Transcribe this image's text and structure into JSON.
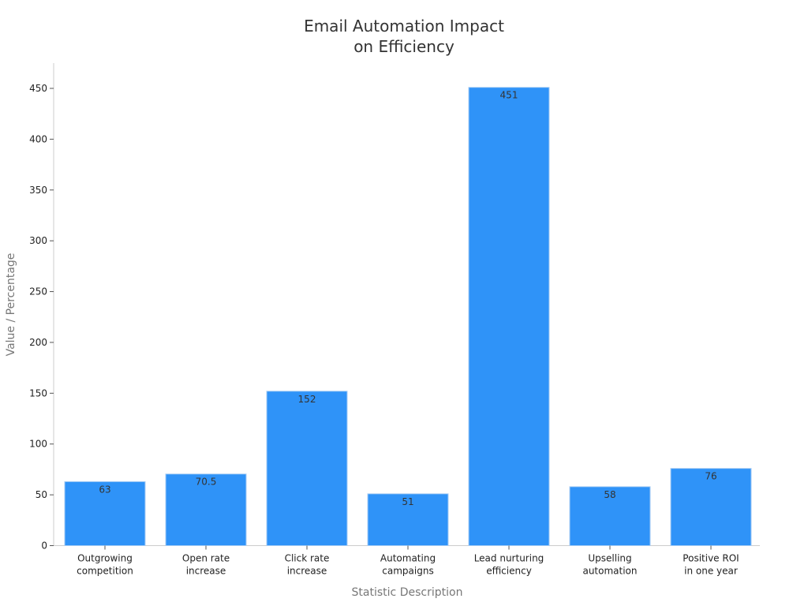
{
  "chart_data": {
    "type": "bar",
    "title_lines": [
      "Email Automation Impact",
      "on Efficiency"
    ],
    "xlabel": "Statistic Description",
    "ylabel": "Value / Percentage",
    "categories": [
      [
        "Outgrowing",
        "competition"
      ],
      [
        "Open rate",
        "increase"
      ],
      [
        "Click rate",
        "increase"
      ],
      [
        "Automating",
        "campaigns"
      ],
      [
        "Lead nurturing",
        "efficiency"
      ],
      [
        "Upselling",
        "automation"
      ],
      [
        "Positive ROI",
        "in one year"
      ]
    ],
    "values": [
      63,
      70.5,
      152,
      51,
      451,
      58,
      76
    ],
    "value_labels": [
      "63",
      "70.5",
      "152",
      "51",
      "451",
      "58",
      "76"
    ],
    "ylim": [
      0,
      475
    ],
    "yticks": [
      0,
      50,
      100,
      150,
      200,
      250,
      300,
      350,
      400,
      450
    ],
    "grid": false,
    "legend": "none",
    "bar_color": "#2f93f8",
    "bar_edge_color": "#a9cdf3"
  }
}
